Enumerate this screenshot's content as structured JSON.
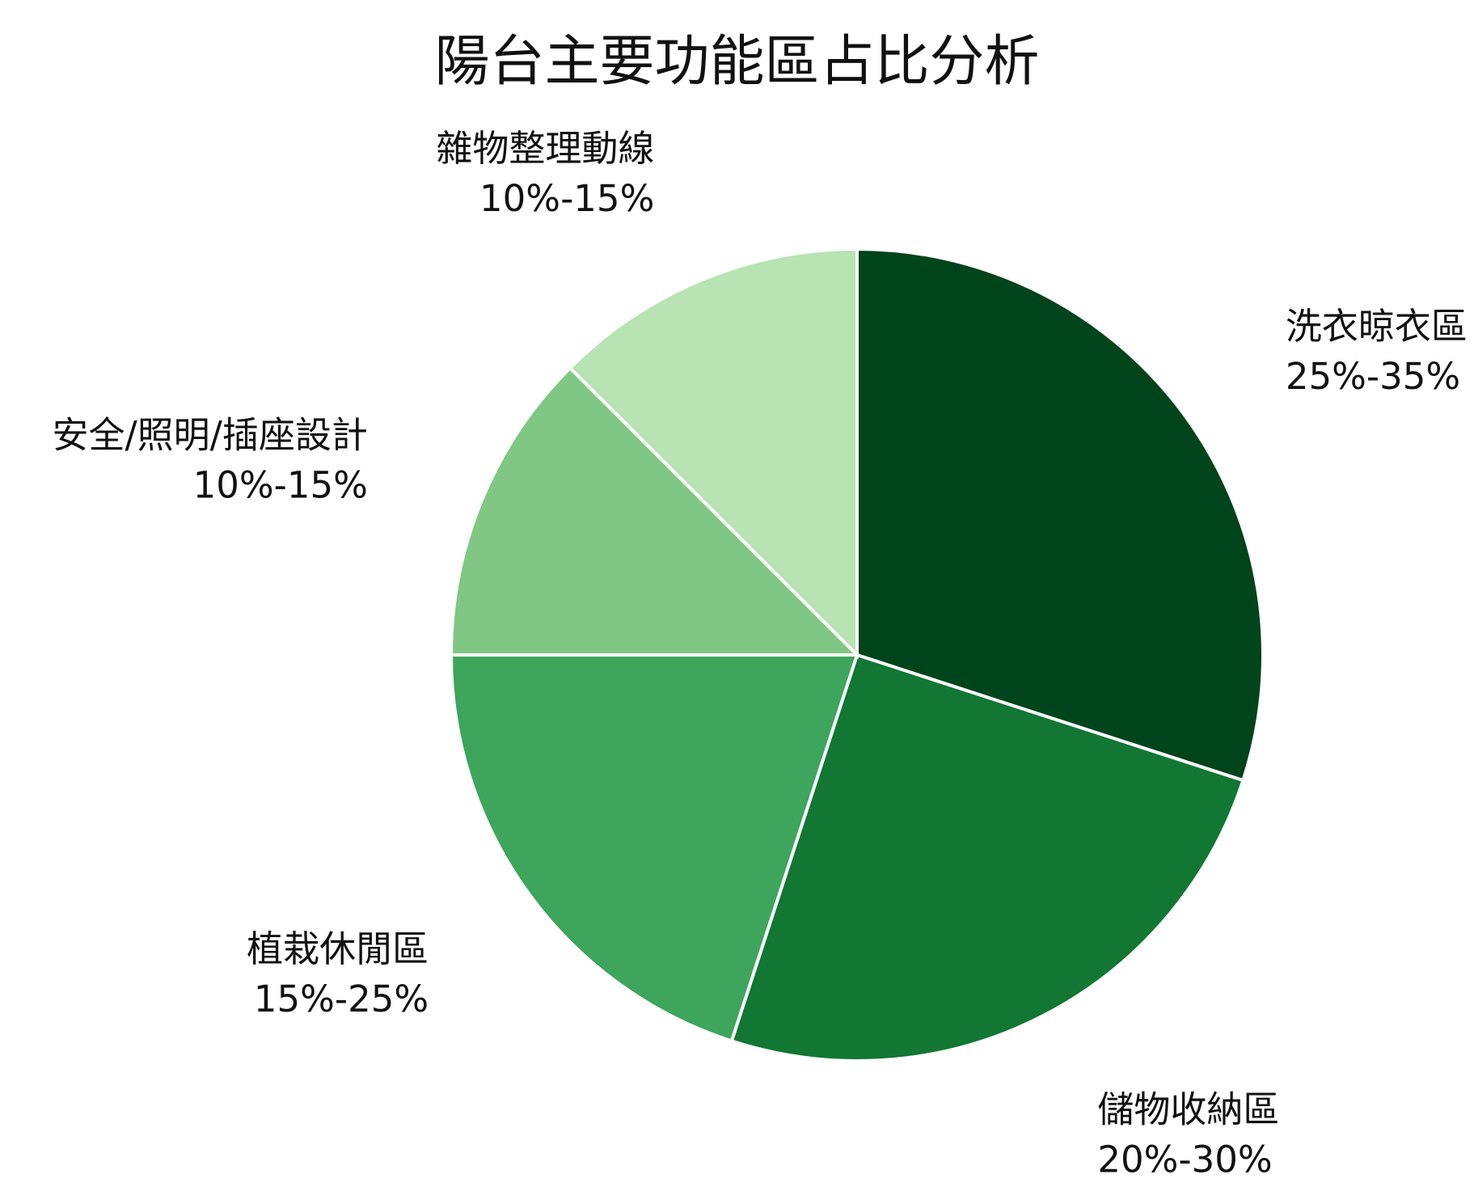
{
  "chart_data": {
    "type": "pie",
    "title": "陽台主要功能區占比分析",
    "start": "12 o'clock",
    "direction": "clockwise",
    "slices": [
      {
        "name": "洗衣晾衣區",
        "range_label": "25%-35%",
        "value": 30,
        "color": "#00441b"
      },
      {
        "name": "儲物收納區",
        "range_label": "20%-30%",
        "value": 25,
        "color": "#117733"
      },
      {
        "name": "植栽休閒區",
        "range_label": "15%-25%",
        "value": 20,
        "color": "#3ea55c"
      },
      {
        "name": "安全/照明/插座設計",
        "range_label": "10%-15%",
        "value": 12.5,
        "color": "#81c784"
      },
      {
        "name": "雜物整理動線",
        "range_label": "10%-15%",
        "value": 12.5,
        "color": "#b8e3b3"
      }
    ]
  }
}
